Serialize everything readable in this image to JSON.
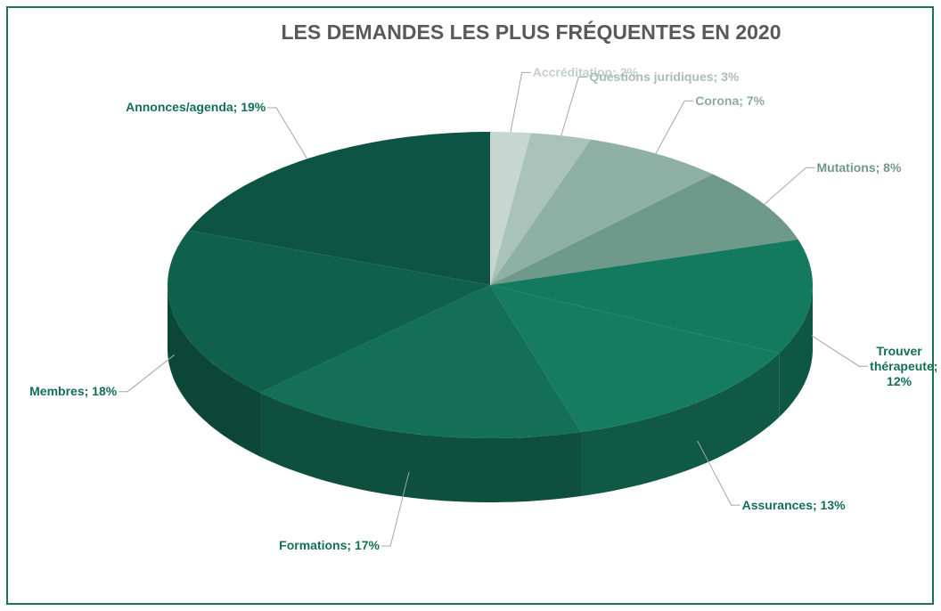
{
  "chart_data": {
    "type": "pie",
    "title": "LES DEMANDES LES PLUS FRÉQUENTES EN 2020",
    "values": [
      2,
      3,
      7,
      8,
      12,
      13,
      17,
      18,
      19
    ],
    "value_labels": [
      "Accréditation; 2%",
      "Questions juridiques; 3%",
      "Corona; 7%",
      "Mutations; 8%",
      "Trouver thérapeute; 12%",
      "Assurances; 13%",
      "Formations; 17%",
      "Membres; 18%",
      "Annonces/agenda; 19%"
    ],
    "colors": [
      "#c8d6d2",
      "#a9c2ba",
      "#8fb0a4",
      "#6f9a8b",
      "#137a5d",
      "#167c60",
      "#136f55",
      "#10614b",
      "#0d5444"
    ],
    "label_colors": [
      "#c3cfcb",
      "#a9bdb6",
      "#8eaaa0",
      "#6f9a8b",
      "#136f55",
      "#136f55",
      "#136f55",
      "#136f55",
      "#136f55"
    ]
  }
}
